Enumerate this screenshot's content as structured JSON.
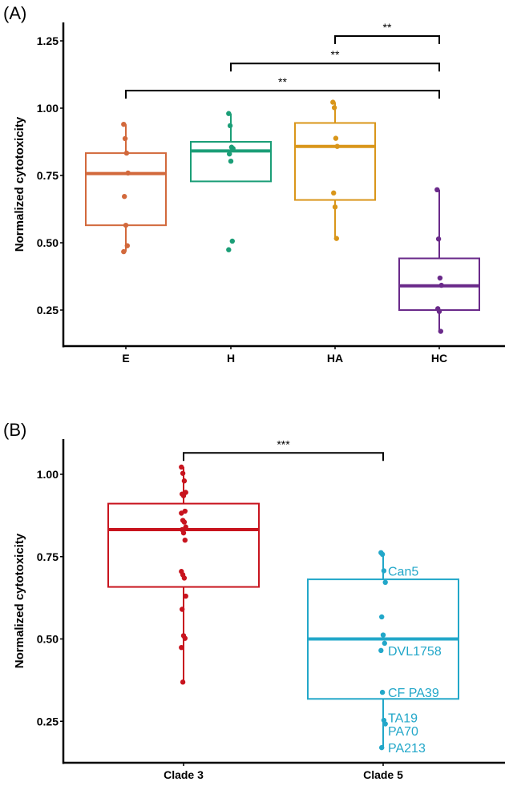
{
  "chart_data": [
    {
      "type": "box",
      "panel_label": "(A)",
      "ylabel": "Normalized cytotoxicity",
      "xlabel": "",
      "ylim": [
        0.11,
        1.32
      ],
      "yticks": [
        "0.25",
        "0.50",
        "0.75",
        "1.00",
        "1.25"
      ],
      "grid": false,
      "categories": [
        "E",
        "H",
        "HA",
        "HC"
      ],
      "colors": [
        "#d2693c",
        "#1b9e77",
        "#d9961a",
        "#6a2a8a"
      ],
      "boxes": [
        {
          "q1": 0.565,
          "median": 0.757,
          "q3": 0.833,
          "whisker_low": 0.467,
          "whisker_high": 0.94,
          "points": [
            0.94,
            0.887,
            0.833,
            0.759,
            0.672,
            0.565,
            0.489,
            0.467
          ]
        },
        {
          "q1": 0.728,
          "median": 0.841,
          "q3": 0.875,
          "whisker_low": 0.728,
          "whisker_high": 0.98,
          "points": [
            0.98,
            0.935,
            0.855,
            0.85,
            0.83,
            0.803,
            0.506,
            0.474
          ]
        },
        {
          "q1": 0.659,
          "median": 0.858,
          "q3": 0.945,
          "whisker_low": 0.516,
          "whisker_high": 1.022,
          "points": [
            1.022,
            1.002,
            0.888,
            0.858,
            0.685,
            0.633,
            0.516
          ]
        },
        {
          "q1": 0.25,
          "median": 0.34,
          "q3": 0.442,
          "whisker_low": 0.171,
          "whisker_high": 0.697,
          "points": [
            0.697,
            0.514,
            0.369,
            0.342,
            0.255,
            0.245,
            0.171
          ]
        }
      ],
      "significance": [
        {
          "from": "E",
          "to": "HC",
          "y": 1.065,
          "label": "**"
        },
        {
          "from": "H",
          "to": "HC",
          "y": 1.166,
          "label": "**"
        },
        {
          "from": "HA",
          "to": "HC",
          "y": 1.268,
          "label": "**"
        }
      ]
    },
    {
      "type": "box",
      "panel_label": "(B)",
      "ylabel": "Normalized cytotoxicity",
      "xlabel": "",
      "ylim": [
        0.14,
        1.1
      ],
      "yticks": [
        "0.25",
        "0.50",
        "0.75",
        "1.00"
      ],
      "grid": false,
      "categories": [
        "Clade 3",
        "Clade 5"
      ],
      "colors": [
        "#c8141e",
        "#22a7c9"
      ],
      "boxes": [
        {
          "q1": 0.658,
          "median": 0.832,
          "q3": 0.911,
          "whisker_low": 0.369,
          "whisker_high": 1.022,
          "points": [
            1.022,
            1.003,
            0.98,
            0.945,
            0.94,
            0.935,
            0.888,
            0.882,
            0.86,
            0.855,
            0.84,
            0.832,
            0.822,
            0.8,
            0.705,
            0.695,
            0.685,
            0.63,
            0.59,
            0.51,
            0.502,
            0.474,
            0.369
          ]
        },
        {
          "q1": 0.318,
          "median": 0.5,
          "q3": 0.681,
          "whisker_low": 0.17,
          "whisker_high": 0.76,
          "points": [
            0.762,
            0.757,
            0.707,
            0.672,
            0.567,
            0.512,
            0.487,
            0.465,
            0.338,
            0.253,
            0.242,
            0.17
          ],
          "point_labels": [
            {
              "y": 0.707,
              "label": "Can5"
            },
            {
              "y": 0.465,
              "label": "DVL1758"
            },
            {
              "y": 0.338,
              "label": "CF  PA39"
            },
            {
              "y": 0.262,
              "label": "TA19"
            },
            {
              "y": 0.222,
              "label": "PA70"
            },
            {
              "y": 0.17,
              "label": "PA213"
            }
          ]
        }
      ],
      "significance": [
        {
          "from": "Clade 3",
          "to": "Clade 5",
          "y": 1.065,
          "label": "***"
        }
      ]
    }
  ]
}
